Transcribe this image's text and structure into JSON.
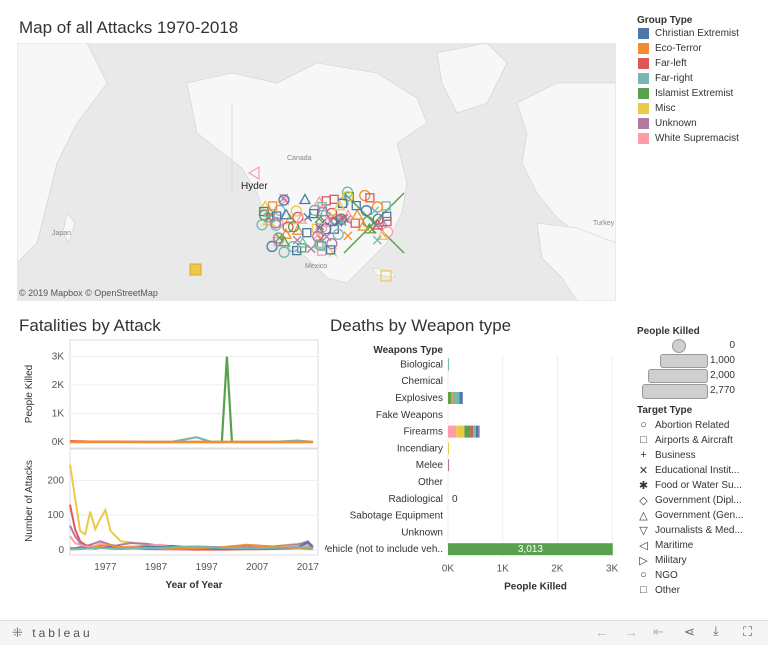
{
  "map": {
    "title": "Map of all Attacks 1970-2018",
    "attribution": "© 2019 Mapbox  © OpenStreetMap",
    "labels": {
      "canada": "Canada",
      "mexico": "Mexico",
      "japan": "Japan",
      "turkey": "Turkey",
      "hyder": "Hyder"
    }
  },
  "group_legend": {
    "title": "Group Type",
    "items": [
      {
        "label": "Christian Extremist",
        "color": "#4e79a7"
      },
      {
        "label": "Eco-Terror",
        "color": "#f28e2b"
      },
      {
        "label": "Far-left",
        "color": "#e15759"
      },
      {
        "label": "Far-right",
        "color": "#76b7b2"
      },
      {
        "label": "Islamist Extremist",
        "color": "#59a14f"
      },
      {
        "label": "Misc",
        "color": "#edc948"
      },
      {
        "label": "Unknown",
        "color": "#b07aa1"
      },
      {
        "label": "White Supremacist",
        "color": "#ff9da7"
      }
    ]
  },
  "size_legend": {
    "title": "People Killed",
    "items": [
      "0",
      "1,000",
      "2,000",
      "2,770"
    ]
  },
  "target_legend": {
    "title": "Target Type",
    "items": [
      {
        "label": "Abortion Related",
        "icon": "circle-icon",
        "glyph": "○"
      },
      {
        "label": "Airports & Aircraft",
        "icon": "square-icon",
        "glyph": "□"
      },
      {
        "label": "Business",
        "icon": "plus-icon",
        "glyph": "+"
      },
      {
        "label": "Educational Instit...",
        "icon": "cross-icon",
        "glyph": "✕"
      },
      {
        "label": "Food or Water Su...",
        "icon": "asterisk-icon",
        "glyph": "✱"
      },
      {
        "label": "Government (Dipl...",
        "icon": "diamond-icon",
        "glyph": "◇"
      },
      {
        "label": "Government (Gen...",
        "icon": "triangle-up-icon",
        "glyph": "△"
      },
      {
        "label": "Journalists & Med...",
        "icon": "triangle-down-icon",
        "glyph": "▽"
      },
      {
        "label": "Maritime",
        "icon": "triangle-left-icon",
        "glyph": "◁"
      },
      {
        "label": "Military",
        "icon": "triangle-right-icon",
        "glyph": "▷"
      },
      {
        "label": "NGO",
        "icon": "circle-icon",
        "glyph": "○"
      },
      {
        "label": "Other",
        "icon": "square-icon",
        "glyph": "□"
      }
    ]
  },
  "footer": {
    "brand": "tableau"
  },
  "chart_data": [
    {
      "type": "line",
      "title": "Fatalities by Attack",
      "xlabel": "Year of Year",
      "ylabel": "People Killed",
      "ylim": [
        0,
        3300
      ],
      "yticks": [
        "0K",
        "1K",
        "2K",
        "3K"
      ],
      "x": [
        1970,
        1975,
        1980,
        1985,
        1990,
        1995,
        1998,
        2000,
        2001,
        2002,
        2005,
        2010,
        2015,
        2018
      ],
      "series": [
        {
          "color": "#59a14f",
          "values": [
            0,
            0,
            0,
            0,
            0,
            0,
            0,
            0,
            2997,
            0,
            0,
            0,
            0,
            0
          ]
        },
        {
          "color": "#76b7b2",
          "values": [
            0,
            0,
            0,
            0,
            0,
            168,
            0,
            0,
            0,
            0,
            0,
            0,
            50,
            0
          ]
        },
        {
          "color": "#e15759",
          "values": [
            30,
            10,
            10,
            0,
            0,
            0,
            0,
            0,
            0,
            0,
            0,
            0,
            0,
            0
          ]
        },
        {
          "color": "#f28e2b",
          "values": [
            5,
            5,
            5,
            5,
            5,
            5,
            5,
            5,
            5,
            5,
            5,
            5,
            5,
            5
          ]
        }
      ]
    },
    {
      "type": "line",
      "xlabel": "Year of Year",
      "ylabel": "Number of Attacks",
      "ylim": [
        0,
        270
      ],
      "yticks": [
        "0",
        "100",
        "200"
      ],
      "xticks": [
        "1977",
        "1987",
        "1997",
        "2007",
        "2017"
      ],
      "x": [
        1970,
        1971,
        1972,
        1973,
        1974,
        1975,
        1976,
        1977,
        1978,
        1979,
        1980,
        1982,
        1985,
        1988,
        1990,
        1995,
        2000,
        2005,
        2010,
        2015,
        2017,
        2018
      ],
      "series": [
        {
          "color": "#edc948",
          "values": [
            245,
            150,
            55,
            45,
            110,
            60,
            90,
            115,
            55,
            40,
            25,
            22,
            15,
            12,
            10,
            8,
            6,
            8,
            10,
            18,
            20,
            12
          ]
        },
        {
          "color": "#e15759",
          "values": [
            130,
            60,
            25,
            15,
            10,
            8,
            12,
            15,
            10,
            8,
            6,
            5,
            3,
            2,
            2,
            1,
            1,
            2,
            3,
            5,
            8,
            4
          ]
        },
        {
          "color": "#b07aa1",
          "values": [
            70,
            40,
            20,
            10,
            15,
            20,
            25,
            20,
            15,
            12,
            15,
            20,
            18,
            12,
            8,
            10,
            8,
            12,
            10,
            15,
            25,
            10
          ]
        },
        {
          "color": "#ff9da7",
          "values": [
            40,
            20,
            15,
            10,
            8,
            12,
            18,
            15,
            12,
            10,
            8,
            10,
            12,
            15,
            10,
            6,
            5,
            6,
            8,
            12,
            15,
            8
          ]
        },
        {
          "color": "#4e79a7",
          "values": [
            5,
            5,
            8,
            6,
            5,
            4,
            6,
            8,
            10,
            12,
            8,
            6,
            10,
            8,
            12,
            6,
            4,
            5,
            6,
            8,
            22,
            6
          ]
        },
        {
          "color": "#f28e2b",
          "values": [
            2,
            2,
            3,
            4,
            6,
            8,
            10,
            12,
            15,
            10,
            8,
            8,
            6,
            4,
            3,
            5,
            8,
            15,
            10,
            5,
            3,
            2
          ]
        },
        {
          "color": "#76b7b2",
          "values": [
            3,
            3,
            4,
            4,
            5,
            5,
            6,
            5,
            4,
            3,
            3,
            4,
            5,
            6,
            8,
            10,
            6,
            5,
            6,
            8,
            8,
            5
          ]
        }
      ]
    },
    {
      "type": "bar",
      "title": "Deaths by Weapon type",
      "xlabel": "People Killed",
      "ylabel": "Weapons Type",
      "xlim": [
        0,
        3200
      ],
      "xticks": [
        {
          "v": 0,
          "l": "0K"
        },
        {
          "v": 1000,
          "l": "1K"
        },
        {
          "v": 2000,
          "l": "2K"
        },
        {
          "v": 3000,
          "l": "3K"
        }
      ],
      "categories": [
        "Biological",
        "Chemical",
        "Explosives",
        "Fake Weapons",
        "Firearms",
        "Incendiary",
        "Melee",
        "Other",
        "Radiological",
        "Sabotage Equipment",
        "Unknown",
        "Vehicle (not to include veh.."
      ],
      "stacks": [
        [
          {
            "color": "#76b7b2",
            "value": 5
          }
        ],
        [
          {
            "color": "#e15759",
            "value": 0
          }
        ],
        [
          {
            "color": "#59a14f",
            "value": 60
          },
          {
            "color": "#f28e2b",
            "value": 30
          },
          {
            "color": "#76b7b2",
            "value": 120
          },
          {
            "color": "#4e79a7",
            "value": 60
          }
        ],
        [
          {
            "color": "#edc948",
            "value": 0
          }
        ],
        [
          {
            "color": "#ff9da7",
            "value": 150
          },
          {
            "color": "#edc948",
            "value": 150
          },
          {
            "color": "#59a14f",
            "value": 110
          },
          {
            "color": "#e15759",
            "value": 50
          },
          {
            "color": "#76b7b2",
            "value": 50
          },
          {
            "color": "#4e79a7",
            "value": 50
          },
          {
            "color": "#b07aa1",
            "value": 20
          }
        ],
        [
          {
            "color": "#edc948",
            "value": 15
          }
        ],
        [
          {
            "color": "#b07aa1",
            "value": 20
          }
        ],
        [
          {
            "color": "#edc948",
            "value": 0
          }
        ],
        [],
        [
          {
            "color": "#edc948",
            "value": 0
          }
        ],
        [
          {
            "color": "#edc948",
            "value": 0
          }
        ],
        [
          {
            "color": "#59a14f",
            "value": 3013
          }
        ]
      ],
      "value_labels": [
        {
          "index": 8,
          "text": "0"
        },
        {
          "index": 11,
          "text": "3,013"
        }
      ]
    }
  ]
}
